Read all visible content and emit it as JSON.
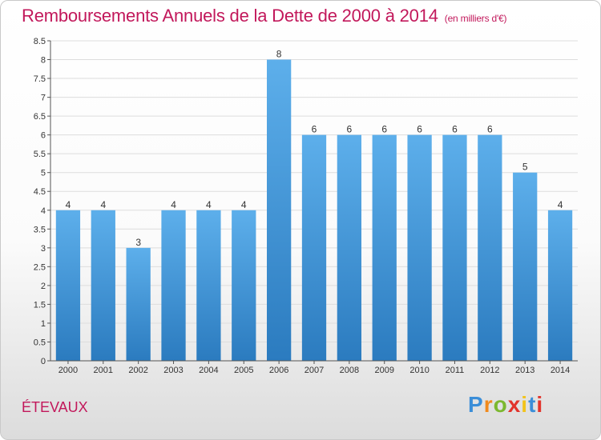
{
  "chart_data": {
    "type": "bar",
    "title": "Remboursements Annuels de la Dette de 2000 à 2014",
    "subtitle": "(en milliers d'€)",
    "categories": [
      "2000",
      "2001",
      "2002",
      "2003",
      "2004",
      "2005",
      "2006",
      "2007",
      "2008",
      "2009",
      "2010",
      "2011",
      "2012",
      "2013",
      "2014"
    ],
    "values": [
      4,
      4,
      3,
      4,
      4,
      4,
      8,
      6,
      6,
      6,
      6,
      6,
      6,
      5,
      4
    ],
    "data_labels": [
      "4",
      "4",
      "3",
      "4",
      "4",
      "4",
      "8",
      "6",
      "6",
      "6",
      "6",
      "6",
      "6",
      "5",
      "4"
    ],
    "ylim": [
      0,
      8.5
    ],
    "yticks": [
      "0",
      "0.5",
      "1",
      "1.5",
      "2",
      "2.5",
      "3",
      "3.5",
      "4",
      "4.5",
      "5",
      "5.5",
      "6",
      "6.5",
      "7",
      "7.5",
      "8",
      "8.5"
    ],
    "grid": true,
    "bar_color": "#4a9fe0"
  },
  "commune": "ÉTEVAUX",
  "logo": {
    "text": "Proxiti",
    "letter_colors": [
      "#3b8ed8",
      "#f18a1c",
      "#7cb82f",
      "#e2342c",
      "#f2c31b",
      "#3b8ed8",
      "#e2342c"
    ]
  }
}
